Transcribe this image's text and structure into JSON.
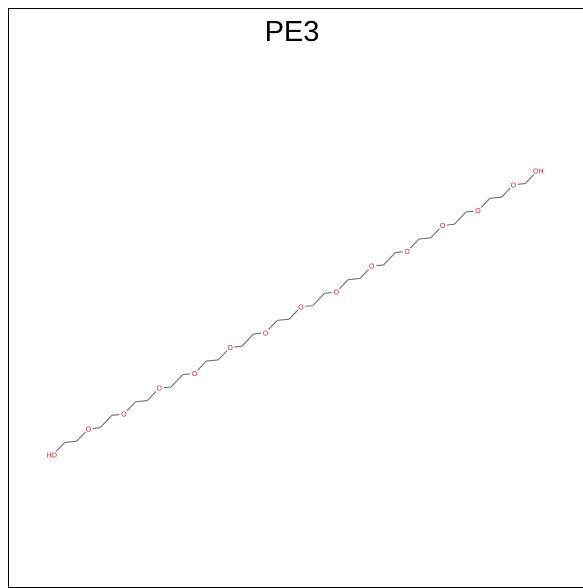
{
  "title": "PE3",
  "molecule": {
    "terminal_left": "HO",
    "terminal_right": "OH",
    "oxygen_label": "O",
    "oxygen_count": 13,
    "colors": {
      "heteroatom": "#e8212b",
      "bond": "#6e6e6e"
    }
  }
}
